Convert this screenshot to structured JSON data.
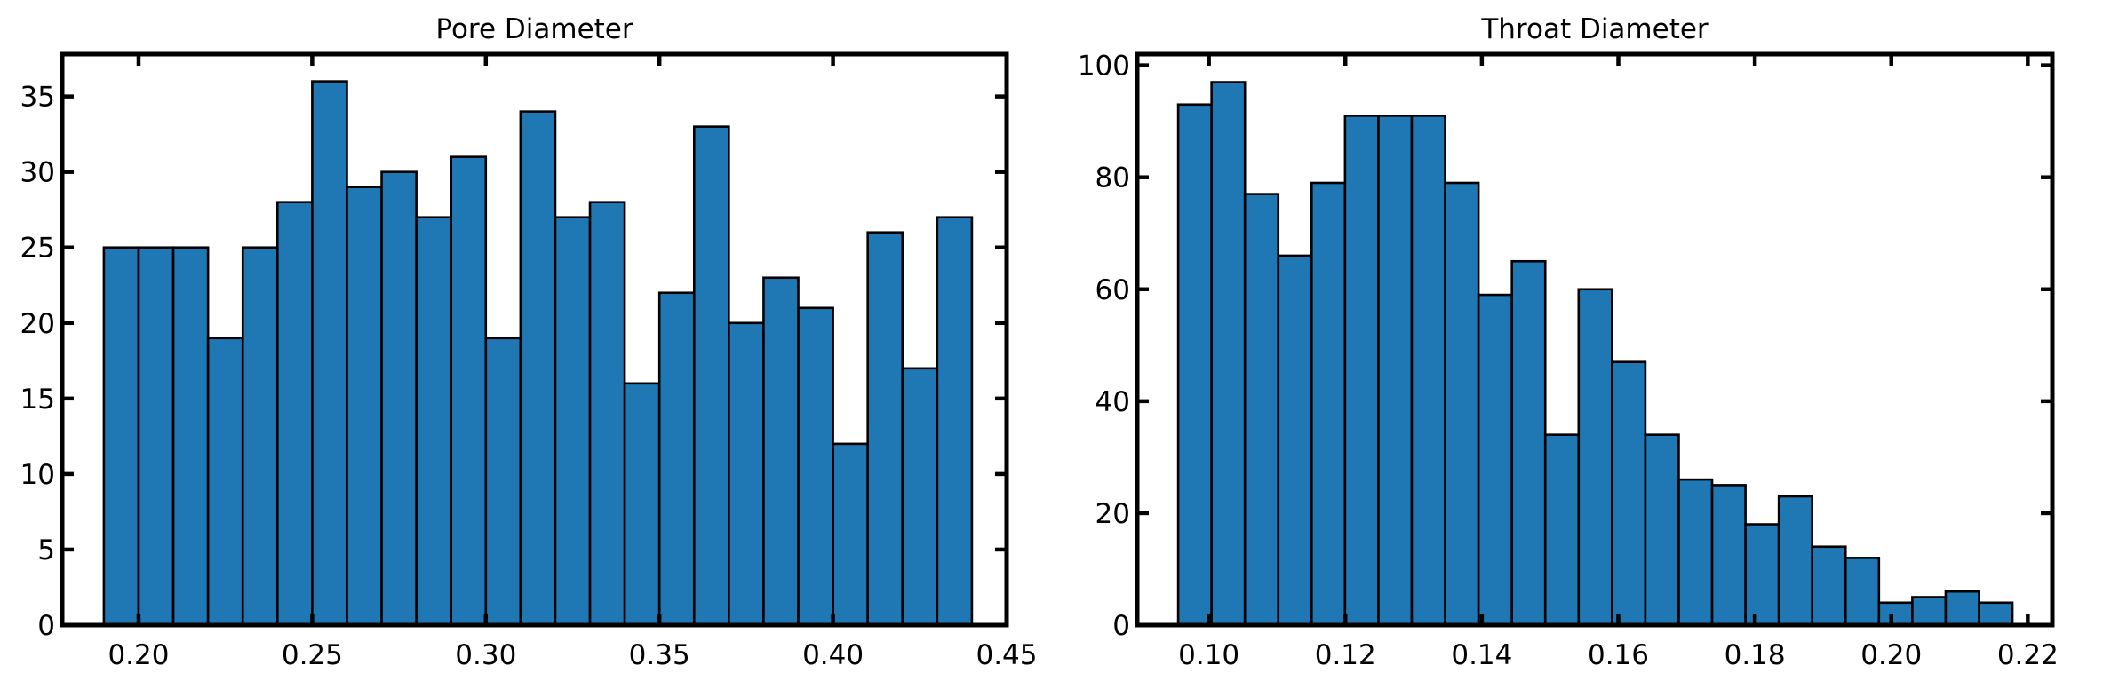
{
  "chart_data": [
    {
      "type": "bar",
      "title": "Pore Diameter",
      "xlabel": "",
      "ylabel": "",
      "xlim": [
        0.178,
        0.45
      ],
      "ylim": [
        0,
        37.8
      ],
      "bin_start": 0.19,
      "bin_width": 0.01,
      "values": [
        25,
        25,
        25,
        19,
        25,
        28,
        36,
        29,
        30,
        27,
        31,
        19,
        34,
        27,
        28,
        16,
        22,
        33,
        20,
        23,
        21,
        12,
        26,
        17,
        27
      ],
      "xticks": [
        0.2,
        0.25,
        0.3,
        0.35,
        0.4,
        0.45
      ],
      "xtick_labels": [
        "0.20",
        "0.25",
        "0.30",
        "0.35",
        "0.40",
        "0.45"
      ],
      "yticks": [
        0,
        5,
        10,
        15,
        20,
        25,
        30,
        35
      ],
      "ytick_labels": [
        "0",
        "5",
        "10",
        "15",
        "20",
        "25",
        "30",
        "35"
      ]
    },
    {
      "type": "bar",
      "title": "Throat Diameter",
      "xlabel": "",
      "ylabel": "",
      "xlim": [
        0.0895,
        0.2236
      ],
      "ylim": [
        0,
        102
      ],
      "bin_start": 0.0955,
      "bin_width": 0.00489,
      "values": [
        93,
        97,
        77,
        66,
        79,
        91,
        91,
        91,
        79,
        59,
        65,
        34,
        60,
        47,
        34,
        26,
        25,
        18,
        23,
        14,
        12,
        4,
        5,
        6,
        4
      ],
      "xticks": [
        0.1,
        0.12,
        0.14,
        0.16,
        0.18,
        0.2,
        0.22
      ],
      "xtick_labels": [
        "0.10",
        "0.12",
        "0.14",
        "0.16",
        "0.18",
        "0.20",
        "0.22"
      ],
      "yticks": [
        0,
        20,
        40,
        60,
        80,
        100
      ],
      "ytick_labels": [
        "0",
        "20",
        "40",
        "60",
        "80",
        "100"
      ]
    }
  ]
}
